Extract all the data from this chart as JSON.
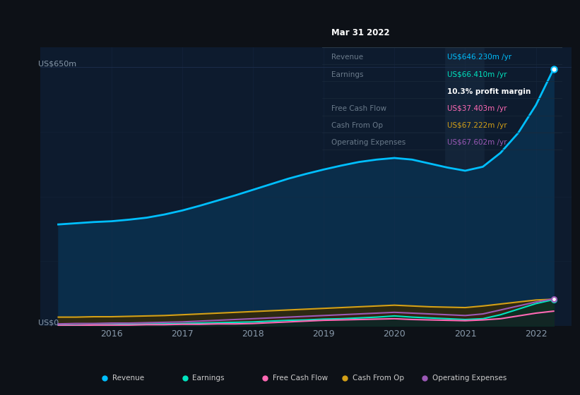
{
  "background_color": "#0d1117",
  "plot_bg_color": "#0d1b2e",
  "x_values": [
    2015.25,
    2015.5,
    2015.75,
    2016.0,
    2016.25,
    2016.5,
    2016.75,
    2017.0,
    2017.25,
    2017.5,
    2017.75,
    2018.0,
    2018.25,
    2018.5,
    2018.75,
    2019.0,
    2019.25,
    2019.5,
    2019.75,
    2020.0,
    2020.25,
    2020.5,
    2020.75,
    2021.0,
    2021.25,
    2021.5,
    2021.75,
    2022.0,
    2022.25
  ],
  "revenue": [
    255,
    258,
    261,
    263,
    267,
    272,
    280,
    290,
    302,
    315,
    328,
    342,
    356,
    370,
    382,
    393,
    403,
    412,
    418,
    422,
    418,
    408,
    398,
    390,
    400,
    435,
    485,
    555,
    646
  ],
  "earnings": [
    2,
    2,
    3,
    3,
    4,
    5,
    5,
    6,
    7,
    8,
    9,
    10,
    12,
    14,
    15,
    17,
    18,
    20,
    22,
    25,
    22,
    20,
    18,
    16,
    18,
    28,
    42,
    56,
    66
  ],
  "free_cash_flow": [
    1,
    1,
    2,
    2,
    2,
    3,
    3,
    4,
    4,
    5,
    5,
    6,
    8,
    10,
    12,
    14,
    15,
    16,
    17,
    18,
    16,
    15,
    14,
    13,
    15,
    18,
    25,
    32,
    37
  ],
  "cash_from_op": [
    22,
    22,
    23,
    23,
    24,
    25,
    26,
    28,
    30,
    32,
    34,
    36,
    38,
    40,
    42,
    44,
    46,
    48,
    50,
    52,
    50,
    48,
    47,
    46,
    50,
    55,
    60,
    65,
    67
  ],
  "operating_expenses": [
    5,
    6,
    6,
    7,
    7,
    8,
    9,
    10,
    12,
    14,
    16,
    18,
    20,
    22,
    24,
    26,
    28,
    30,
    32,
    34,
    32,
    30,
    28,
    26,
    30,
    40,
    50,
    60,
    68
  ],
  "revenue_color": "#00bfff",
  "earnings_color": "#00e5c0",
  "free_cash_flow_color": "#ff69b4",
  "cash_from_op_color": "#d4a017",
  "operating_expenses_color": "#9b59b6",
  "revenue_fill": "#0a3055",
  "ylim": [
    0,
    700
  ],
  "xlim": [
    2015.0,
    2022.5
  ],
  "x_tick_positions": [
    2016,
    2017,
    2018,
    2019,
    2020,
    2021,
    2022
  ],
  "x_tick_labels": [
    "2016",
    "2017",
    "2018",
    "2019",
    "2020",
    "2021",
    "2022"
  ],
  "y_label_top": "US$650m",
  "y_label_bottom": "US$0",
  "tooltip": {
    "date": "Mar 31 2022",
    "rows": [
      {
        "label": "Revenue",
        "value": "US$646.230m /yr",
        "color": "#00bfff",
        "indent": false
      },
      {
        "label": "Earnings",
        "value": "US$66.410m /yr",
        "color": "#00e5c0",
        "indent": false
      },
      {
        "label": "",
        "value": "10.3% profit margin",
        "color": "#ffffff",
        "indent": true
      },
      {
        "label": "Free Cash Flow",
        "value": "US$37.403m /yr",
        "color": "#ff69b4",
        "indent": false
      },
      {
        "label": "Cash From Op",
        "value": "US$67.222m /yr",
        "color": "#d4a017",
        "indent": false
      },
      {
        "label": "Operating Expenses",
        "value": "US$67.602m /yr",
        "color": "#9b59b6",
        "indent": false
      }
    ]
  },
  "legend": [
    {
      "label": "Revenue",
      "color": "#00bfff"
    },
    {
      "label": "Earnings",
      "color": "#00e5c0"
    },
    {
      "label": "Free Cash Flow",
      "color": "#ff69b4"
    },
    {
      "label": "Cash From Op",
      "color": "#d4a017"
    },
    {
      "label": "Operating Expenses",
      "color": "#9b59b6"
    }
  ]
}
